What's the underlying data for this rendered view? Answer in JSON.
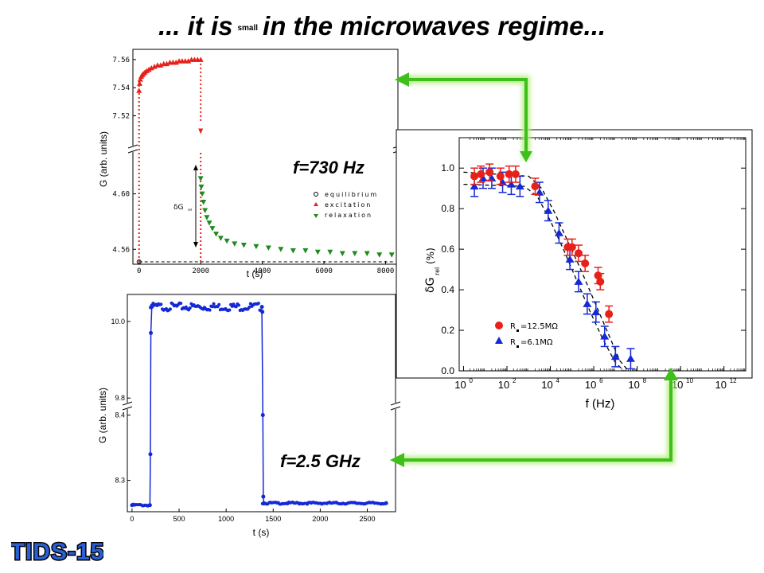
{
  "slide": {
    "title_pre": "... it is",
    "title_small": "small",
    "title_post": "in the microwaves regime...",
    "logo": "TIDS-15"
  },
  "colors": {
    "red": "#e8201a",
    "green": "#1f8a1f",
    "blue": "#1428d8",
    "arrow": "#3ec01a",
    "arrow_glow": "#b9f08a",
    "logo_fill": "#2a5fd6"
  },
  "chart_data": [
    {
      "id": "low-frequency",
      "type": "scatter",
      "annotation": "f=730 Hz",
      "xlabel": "t (s)",
      "ylabel": "G (arb. units)",
      "xlim": [
        -200,
        8400
      ],
      "x_ticks": [
        "0",
        "2000",
        "4000",
        "6000",
        "8000"
      ],
      "ylim_upper": [
        7.505,
        7.565
      ],
      "ylim_lower": [
        4.555,
        4.625
      ],
      "y_ticks_upper": [
        "7.52",
        "7.54",
        "7.56"
      ],
      "y_ticks_lower": [
        "4.56",
        "4.60"
      ],
      "legend": [
        "equilibrium",
        "excitation",
        "relaxation"
      ],
      "delta_label": "δG",
      "delta_sub": "rel",
      "baseline": 4.551,
      "series": [
        {
          "name": "equilibrium",
          "marker": "circle-open",
          "x": [
            0
          ],
          "y": [
            4.551
          ]
        },
        {
          "name": "excitation",
          "marker": "triangle-up",
          "y_axis": "upper",
          "x": [
            0,
            20,
            40,
            70,
            100,
            140,
            190,
            250,
            320,
            400,
            500,
            600,
            700,
            800,
            900,
            1000,
            1100,
            1200,
            1300,
            1400,
            1500,
            1600,
            1700,
            1800,
            1900,
            2000
          ],
          "y": [
            7.538,
            7.543,
            7.546,
            7.548,
            7.549,
            7.55,
            7.551,
            7.552,
            7.553,
            7.554,
            7.555,
            7.556,
            7.556,
            7.557,
            7.557,
            7.558,
            7.558,
            7.558,
            7.559,
            7.559,
            7.559,
            7.559,
            7.56,
            7.56,
            7.56,
            7.56
          ]
        },
        {
          "name": "relaxation",
          "marker": "triangle-down",
          "y_axis": "lower",
          "x": [
            2000,
            2020,
            2050,
            2090,
            2140,
            2200,
            2280,
            2380,
            2500,
            2650,
            2850,
            3100,
            3400,
            3800,
            4200,
            4600,
            5000,
            5400,
            5800,
            6200,
            6600,
            7000,
            7400,
            7800,
            8200
          ],
          "y": [
            4.611,
            4.605,
            4.6,
            4.594,
            4.588,
            4.583,
            4.579,
            4.575,
            4.571,
            4.568,
            4.566,
            4.564,
            4.563,
            4.562,
            4.561,
            4.56,
            4.559,
            4.559,
            4.558,
            4.558,
            4.557,
            4.557,
            4.557,
            4.556,
            4.556
          ]
        }
      ]
    },
    {
      "id": "microwave",
      "type": "line",
      "annotation": "f=2.5 GHz",
      "xlabel": "t (s)",
      "ylabel": "G (arb. units)",
      "xlim": [
        -50,
        2800
      ],
      "x_ticks": [
        "0",
        "500",
        "1000",
        "1500",
        "2000",
        "2500"
      ],
      "ylim_upper": [
        9.79,
        10.06
      ],
      "ylim_lower": [
        8.258,
        8.408
      ],
      "y_ticks_upper": [
        "9.8",
        "10.0"
      ],
      "y_ticks_lower": [
        "8.3",
        "8.4"
      ],
      "series": [
        {
          "name": "G",
          "marker": "circle-filled",
          "x": [
            0,
            190,
            195,
            200,
            205,
            210,
            1380,
            1385,
            1390,
            1395,
            1400,
            2700
          ],
          "y": [
            8.262,
            8.262,
            8.34,
            9.97,
            10.038,
            10.038,
            10.038,
            10.025,
            8.4,
            8.275,
            8.265,
            8.265
          ]
        }
      ]
    },
    {
      "id": "frequency-spectrum",
      "type": "scatter",
      "xlabel": "f (Hz)",
      "ylabel": "δG",
      "ylabel_sub": "rel",
      "ylabel_unit": "(%)",
      "x_log": true,
      "xlim_log10": [
        -0.2,
        13
      ],
      "x_ticks": [
        "10",
        "10",
        "10",
        "10",
        "10",
        "10",
        "10"
      ],
      "x_tick_exponents": [
        "0",
        "2",
        "4",
        "6",
        "8",
        "10",
        "12"
      ],
      "ylim": [
        0,
        1.15
      ],
      "y_ticks": [
        "0.0",
        "0.2",
        "0.4",
        "0.6",
        "0.8",
        "1.0"
      ],
      "legend": [
        "R",
        "R"
      ],
      "legend_values": [
        "=12.5MΩ",
        "=6.1MΩ"
      ],
      "series": [
        {
          "name": "=12.5MΩ",
          "marker": "circle",
          "error": 0.04,
          "log10_f": [
            0.5,
            0.8,
            1.2,
            1.7,
            2.1,
            2.4,
            3.3,
            4.8,
            5.0,
            5.3,
            5.6,
            6.2,
            6.3,
            6.7
          ],
          "y": [
            0.96,
            0.97,
            0.98,
            0.96,
            0.97,
            0.97,
            0.91,
            0.61,
            0.61,
            0.58,
            0.53,
            0.47,
            0.44,
            0.28
          ]
        },
        {
          "name": "=6.1MΩ",
          "marker": "triangle",
          "error": 0.05,
          "log10_f": [
            0.5,
            0.9,
            1.3,
            1.8,
            2.2,
            2.6,
            3.5,
            3.9,
            4.4,
            4.9,
            5.3,
            5.7,
            6.1,
            6.5,
            7.0,
            7.7
          ],
          "y": [
            0.91,
            0.95,
            0.95,
            0.93,
            0.92,
            0.91,
            0.88,
            0.79,
            0.68,
            0.55,
            0.44,
            0.33,
            0.29,
            0.17,
            0.07,
            0.06
          ]
        }
      ],
      "fit_curves": [
        {
          "log10_f": [
            0,
            3,
            3.6,
            4.2,
            4.8,
            5.4,
            6.0,
            6.6,
            7.2,
            7.6
          ],
          "y": [
            0.98,
            0.96,
            0.9,
            0.78,
            0.64,
            0.5,
            0.35,
            0.2,
            0.05,
            0.0
          ]
        },
        {
          "log10_f": [
            0,
            2.8,
            3.4,
            4.0,
            4.6,
            5.2,
            5.8,
            6.4,
            7.0,
            7.4
          ],
          "y": [
            0.92,
            0.91,
            0.86,
            0.74,
            0.6,
            0.45,
            0.3,
            0.16,
            0.04,
            0.0
          ]
        }
      ]
    }
  ]
}
